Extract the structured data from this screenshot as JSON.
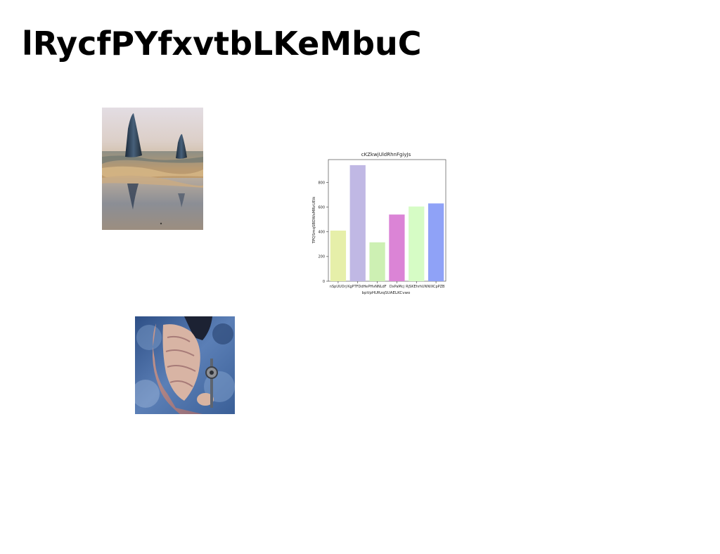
{
  "page": {
    "title": "lRycfPYfxvtbLKeMbuC"
  },
  "images": {
    "sea_rocks": {
      "kind": "photo",
      "subject": "two pointed rock formations standing in shallow sea water at a beach with reflections"
    },
    "figure": {
      "kind": "photo",
      "subject": "person in a pink ruffled dress holding an ornate object against a blue rocky background"
    }
  },
  "chart_data": {
    "type": "bar",
    "title": "cKZkwjUldRhnFgiyJs",
    "xlabel": "bpVpHURzqSUAELKCvwo",
    "ylabel": "TPQSmqSBDWsMRzUEik",
    "categories": [
      "nSpUUOrj",
      "KgPTFDdHe",
      "PHvNNLdF",
      "DxPaMcj",
      "RjSKEhrhUN",
      "NIXCpPZB"
    ],
    "values": [
      410,
      940,
      315,
      540,
      605,
      630
    ],
    "colors": [
      "#e6efa9",
      "#c0b8e4",
      "#cdf0b3",
      "#db84d6",
      "#d6fcc5",
      "#8fa2f7"
    ],
    "ylim": [
      0,
      985
    ],
    "yticks": [
      0,
      200,
      400,
      600,
      800
    ],
    "grid": false,
    "legend": "none"
  }
}
